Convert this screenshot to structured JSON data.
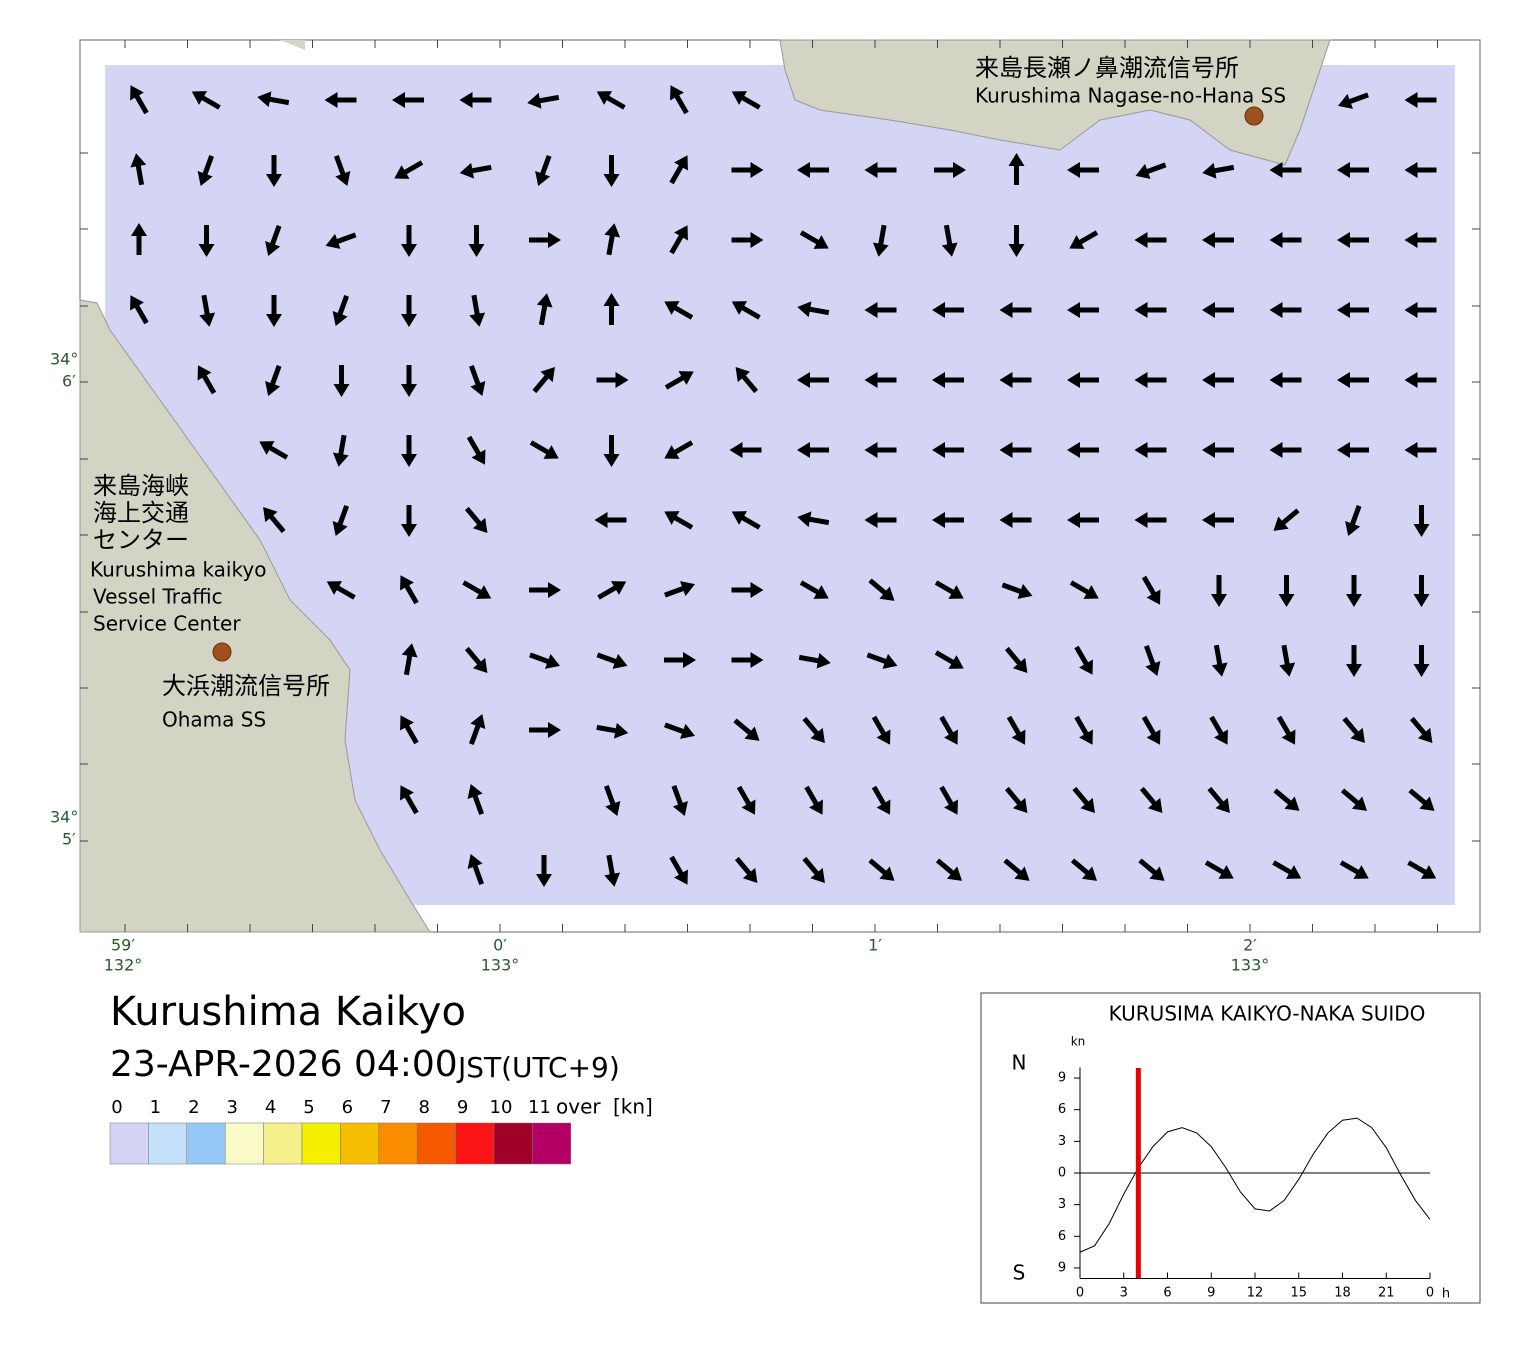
{
  "map": {
    "lat_labels": [
      {
        "deg": "34°",
        "min": "6′"
      },
      {
        "deg": "34°",
        "min": "5′"
      }
    ],
    "lon_labels": [
      {
        "min": "59′",
        "deg": "132°"
      },
      {
        "min": "0′",
        "deg": "133°"
      },
      {
        "min": "1′"
      },
      {
        "min": "2′",
        "deg": "133°"
      }
    ],
    "stations": [
      {
        "ja": "来島長瀬ノ鼻潮流信号所",
        "en": "Kurushima Nagase-no-Hana SS"
      },
      {
        "ja": [
          "来島海峡",
          "海上交通",
          "センター"
        ],
        "en": [
          "Kurushima kaikyo",
          "Vessel Traffic",
          "Service Center"
        ]
      },
      {
        "ja": "大浜潮流信号所",
        "en": "Ohama SS"
      }
    ],
    "current_field": [
      [
        330,
        300,
        280,
        270,
        270,
        270,
        260,
        300,
        330,
        300,
        null,
        null,
        null,
        null,
        null,
        null,
        null,
        null,
        250,
        270
      ],
      [
        350,
        200,
        180,
        160,
        240,
        260,
        200,
        180,
        30,
        90,
        270,
        270,
        90,
        0,
        270,
        250,
        260,
        270,
        270,
        270
      ],
      [
        0,
        180,
        200,
        250,
        180,
        180,
        90,
        10,
        30,
        90,
        120,
        190,
        170,
        180,
        240,
        270,
        270,
        270,
        270,
        270
      ],
      [
        330,
        170,
        180,
        200,
        180,
        170,
        10,
        0,
        300,
        300,
        280,
        270,
        270,
        270,
        270,
        270,
        270,
        270,
        270,
        270
      ],
      [
        null,
        330,
        200,
        180,
        180,
        160,
        40,
        90,
        60,
        320,
        270,
        270,
        270,
        270,
        270,
        270,
        270,
        270,
        270,
        270
      ],
      [
        null,
        null,
        300,
        190,
        180,
        150,
        120,
        180,
        240,
        270,
        270,
        270,
        270,
        270,
        270,
        270,
        270,
        270,
        270,
        270
      ],
      [
        null,
        null,
        320,
        200,
        180,
        140,
        null,
        270,
        300,
        300,
        280,
        270,
        270,
        270,
        270,
        270,
        270,
        230,
        200,
        180
      ],
      [
        null,
        null,
        null,
        300,
        330,
        120,
        90,
        60,
        70,
        90,
        120,
        130,
        120,
        110,
        120,
        150,
        180,
        180,
        180,
        180
      ],
      [
        null,
        null,
        null,
        null,
        10,
        140,
        110,
        110,
        90,
        90,
        100,
        110,
        120,
        140,
        150,
        160,
        170,
        170,
        180,
        180
      ],
      [
        null,
        null,
        null,
        null,
        330,
        20,
        90,
        100,
        110,
        130,
        140,
        150,
        150,
        150,
        150,
        150,
        150,
        150,
        140,
        140
      ],
      [
        null,
        null,
        null,
        null,
        330,
        340,
        null,
        160,
        160,
        150,
        150,
        150,
        150,
        140,
        140,
        140,
        140,
        130,
        130,
        130
      ],
      [
        null,
        null,
        null,
        null,
        null,
        340,
        180,
        170,
        150,
        140,
        140,
        130,
        130,
        130,
        130,
        130,
        120,
        120,
        120,
        120
      ]
    ]
  },
  "header": {
    "title": "Kurushima Kaikyo",
    "datetime": "23-APR-2026 04:00",
    "timezone": "JST(UTC+9)"
  },
  "legend": {
    "ticks": [
      0,
      1,
      2,
      3,
      4,
      5,
      6,
      7,
      8,
      9,
      10,
      11
    ],
    "over_label": "over",
    "unit": "[kn]",
    "colors": [
      "#d4d4f5",
      "#c4e0fb",
      "#96c8f5",
      "#fafac8",
      "#f5f08c",
      "#f5f000",
      "#f5be00",
      "#fa8c00",
      "#f55a00",
      "#fa1414",
      "#a00028",
      "#b40064"
    ]
  },
  "chart_data": {
    "type": "line",
    "title": "KURUSIMA KAIKYO-NAKA SUIDO",
    "y_unit": "kn",
    "north_label": "N",
    "south_label": "S",
    "x_unit": "h",
    "x": [
      0,
      1,
      2,
      3,
      4,
      5,
      6,
      7,
      8,
      9,
      10,
      11,
      12,
      13,
      14,
      15,
      16,
      17,
      18,
      19,
      20,
      21,
      22,
      23,
      24
    ],
    "values": [
      -7.5,
      -6.9,
      -4.8,
      -2.0,
      0.5,
      2.5,
      3.9,
      4.3,
      3.8,
      2.5,
      0.5,
      -1.8,
      -3.4,
      -3.6,
      -2.6,
      -0.6,
      1.8,
      3.8,
      5.0,
      5.2,
      4.3,
      2.4,
      -0.2,
      -2.6,
      -4.4
    ],
    "color": "#000000",
    "current_hour": 4,
    "current_color": "#e60000",
    "xlim": [
      0,
      24
    ],
    "ylim": [
      -10,
      10
    ],
    "xticks": [
      0,
      3,
      6,
      9,
      12,
      15,
      18,
      21,
      {
        "value": 24,
        "label": "0"
      }
    ],
    "yticks": [
      {
        "value": -9,
        "label": "9"
      },
      {
        "value": -6,
        "label": "6"
      },
      {
        "value": -3,
        "label": "3"
      },
      0,
      3,
      6,
      9
    ]
  }
}
